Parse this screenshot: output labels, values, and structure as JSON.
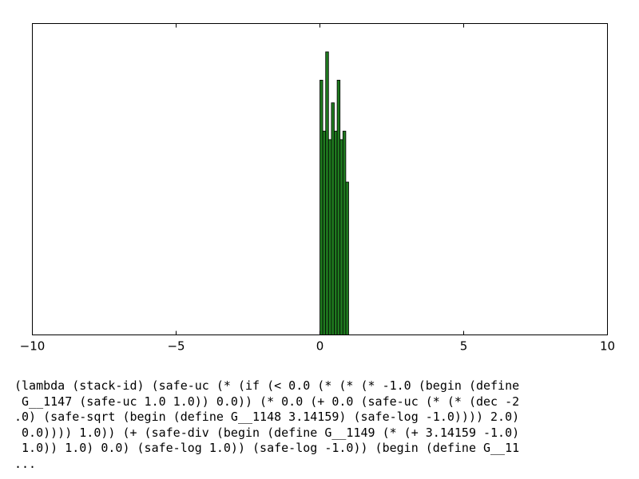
{
  "chart_data": {
    "type": "bar",
    "xlim": [
      -10,
      10
    ],
    "ylim": [
      0,
      1.1
    ],
    "x_ticks": [
      "−10",
      "−5",
      "0",
      "5",
      "10"
    ],
    "x_tick_values": [
      -10,
      -5,
      0,
      5,
      10
    ],
    "y_ticks": [],
    "title": "",
    "xlabel": "",
    "ylabel": "",
    "grid": false,
    "bar_width": 0.1,
    "bar_color": "#1f7a1f",
    "bar_edge_color": "#000000",
    "bins": [
      {
        "x": 0.0,
        "value": 0.9
      },
      {
        "x": 0.1,
        "value": 0.72
      },
      {
        "x": 0.2,
        "value": 1.0
      },
      {
        "x": 0.3,
        "value": 0.69
      },
      {
        "x": 0.4,
        "value": 0.82
      },
      {
        "x": 0.5,
        "value": 0.72
      },
      {
        "x": 0.6,
        "value": 0.9
      },
      {
        "x": 0.7,
        "value": 0.69
      },
      {
        "x": 0.8,
        "value": 0.72
      },
      {
        "x": 0.9,
        "value": 0.54
      }
    ]
  },
  "caption_lines": [
    "(lambda (stack-id) (safe-uc (* (if (< 0.0 (* (* (* -1.0 (begin (define",
    " G__1147 (safe-uc 1.0 1.0)) 0.0)) (* 0.0 (+ 0.0 (safe-uc (* (* (dec -2",
    ".0) (safe-sqrt (begin (define G__1148 3.14159) (safe-log -1.0)))) 2.0)",
    " 0.0)))) 1.0)) (+ (safe-div (begin (define G__1149 (* (+ 3.14159 -1.0)",
    " 1.0)) 1.0) 0.0) (safe-log 1.0)) (safe-log -1.0)) (begin (define G__11",
    "..."
  ]
}
